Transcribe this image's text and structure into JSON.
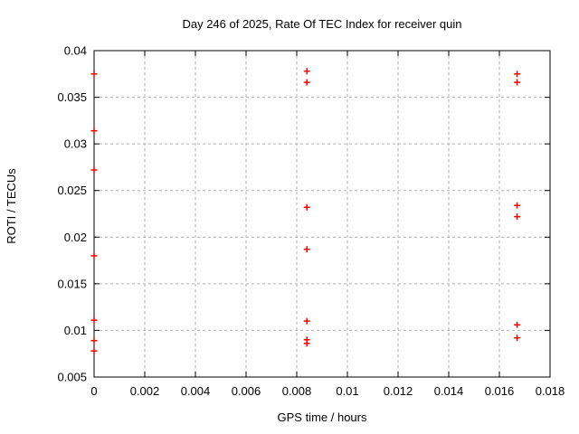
{
  "chart_data": {
    "type": "scatter",
    "title": "Day 246 of 2025, Rate Of TEC Index for receiver quin",
    "xlabel": "GPS time / hours",
    "ylabel": "ROTI / TECUs",
    "xlim": [
      0,
      0.018
    ],
    "ylim": [
      0.005,
      0.04
    ],
    "grid": true,
    "legend": "none",
    "x_ticks": [
      {
        "value": 0,
        "label": "0"
      },
      {
        "value": 0.002,
        "label": "0.002"
      },
      {
        "value": 0.004,
        "label": "0.004"
      },
      {
        "value": 0.006,
        "label": "0.006"
      },
      {
        "value": 0.008,
        "label": "0.008"
      },
      {
        "value": 0.01,
        "label": "0.01"
      },
      {
        "value": 0.012,
        "label": "0.012"
      },
      {
        "value": 0.014,
        "label": "0.014"
      },
      {
        "value": 0.016,
        "label": "0.016"
      },
      {
        "value": 0.018,
        "label": "0.018"
      }
    ],
    "y_ticks": [
      {
        "value": 0.005,
        "label": "0.005"
      },
      {
        "value": 0.01,
        "label": "0.01"
      },
      {
        "value": 0.015,
        "label": "0.015"
      },
      {
        "value": 0.02,
        "label": "0.02"
      },
      {
        "value": 0.025,
        "label": "0.025"
      },
      {
        "value": 0.03,
        "label": "0.03"
      },
      {
        "value": 0.035,
        "label": "0.035"
      },
      {
        "value": 0.04,
        "label": "0.04"
      }
    ],
    "series": [
      {
        "name": "ROTI",
        "marker": "plus",
        "color": "#ff0000",
        "points": [
          [
            0,
            0.0375
          ],
          [
            0,
            0.0314
          ],
          [
            0,
            0.0272
          ],
          [
            0,
            0.018
          ],
          [
            0,
            0.0111
          ],
          [
            0,
            0.0089
          ],
          [
            0,
            0.0078
          ],
          [
            0.0084,
            0.0378
          ],
          [
            0.0084,
            0.0366
          ],
          [
            0.0084,
            0.0232
          ],
          [
            0.0084,
            0.0187
          ],
          [
            0.0084,
            0.011
          ],
          [
            0.0084,
            0.009
          ],
          [
            0.0084,
            0.0086
          ],
          [
            0.0167,
            0.0375
          ],
          [
            0.0167,
            0.0366
          ],
          [
            0.0167,
            0.0234
          ],
          [
            0.0167,
            0.0222
          ],
          [
            0.0167,
            0.0106
          ],
          [
            0.0167,
            0.0092
          ]
        ]
      }
    ],
    "colors": {
      "marker": "#ff0000",
      "grid": "#b0b0b0",
      "border": "#000000",
      "text": "#000000",
      "background": "#ffffff"
    }
  }
}
